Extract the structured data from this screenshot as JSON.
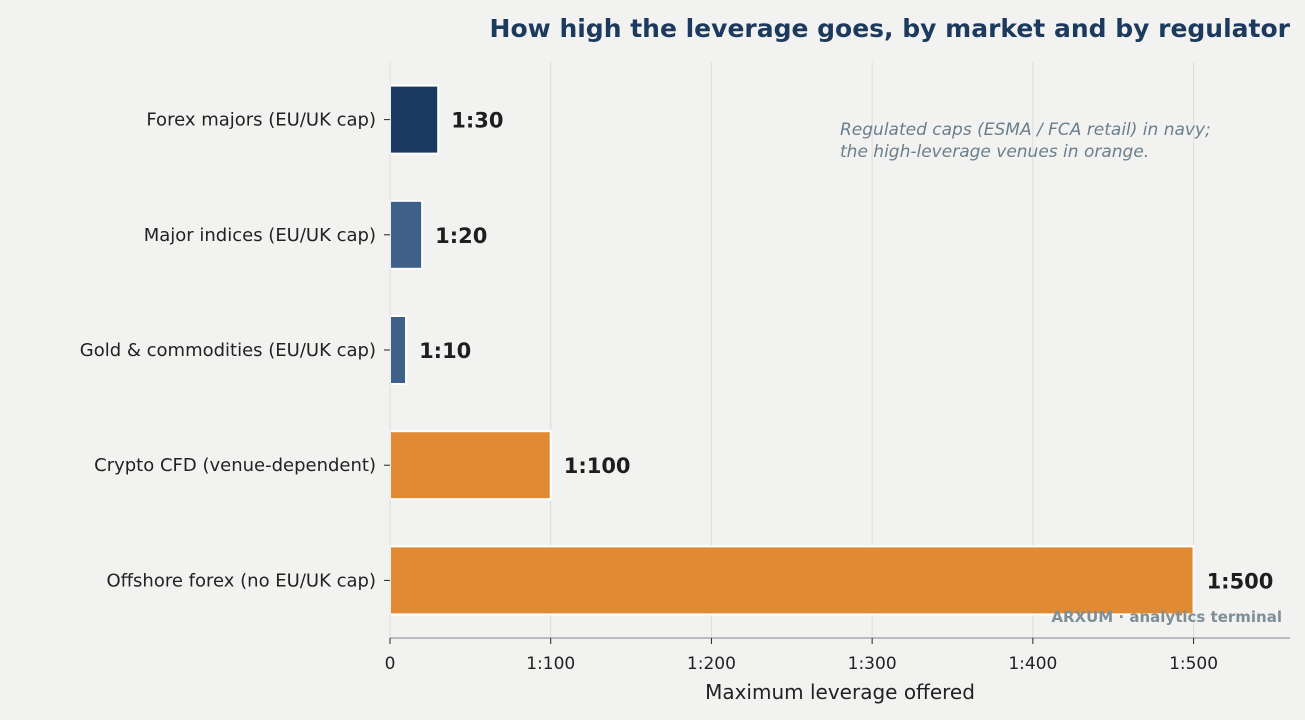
{
  "chart_data": {
    "type": "bar",
    "orientation": "horizontal",
    "title": "How high the leverage goes, by market and by regulator",
    "xlabel": "Maximum leverage offered",
    "ylabel": "",
    "xlim": [
      0,
      560
    ],
    "x_ticks": [
      {
        "value": 0,
        "label": "0"
      },
      {
        "value": 100,
        "label": "1:100"
      },
      {
        "value": 200,
        "label": "1:200"
      },
      {
        "value": 300,
        "label": "1:300"
      },
      {
        "value": 400,
        "label": "1:400"
      },
      {
        "value": 500,
        "label": "1:500"
      }
    ],
    "grid": "vertical",
    "categories": [
      "Forex majors (EU/UK cap)",
      "Major indices (EU/UK cap)",
      "Gold & commodities (EU/UK cap)",
      "Crypto CFD (venue-dependent)",
      "Offshore forex (no EU/UK cap)"
    ],
    "values": [
      30,
      20,
      10,
      100,
      500
    ],
    "value_labels": [
      "1:30",
      "1:20",
      "1:10",
      "1:100",
      "1:500"
    ],
    "colors": [
      "#1b3a5f",
      "#3f6189",
      "#3f6189",
      "#e08b33",
      "#e08b33"
    ],
    "annotation_lines": [
      "Regulated caps (ESMA / FCA retail) in navy;",
      "the high-leverage venues in orange."
    ],
    "watermark": "ARXUM · analytics terminal"
  }
}
